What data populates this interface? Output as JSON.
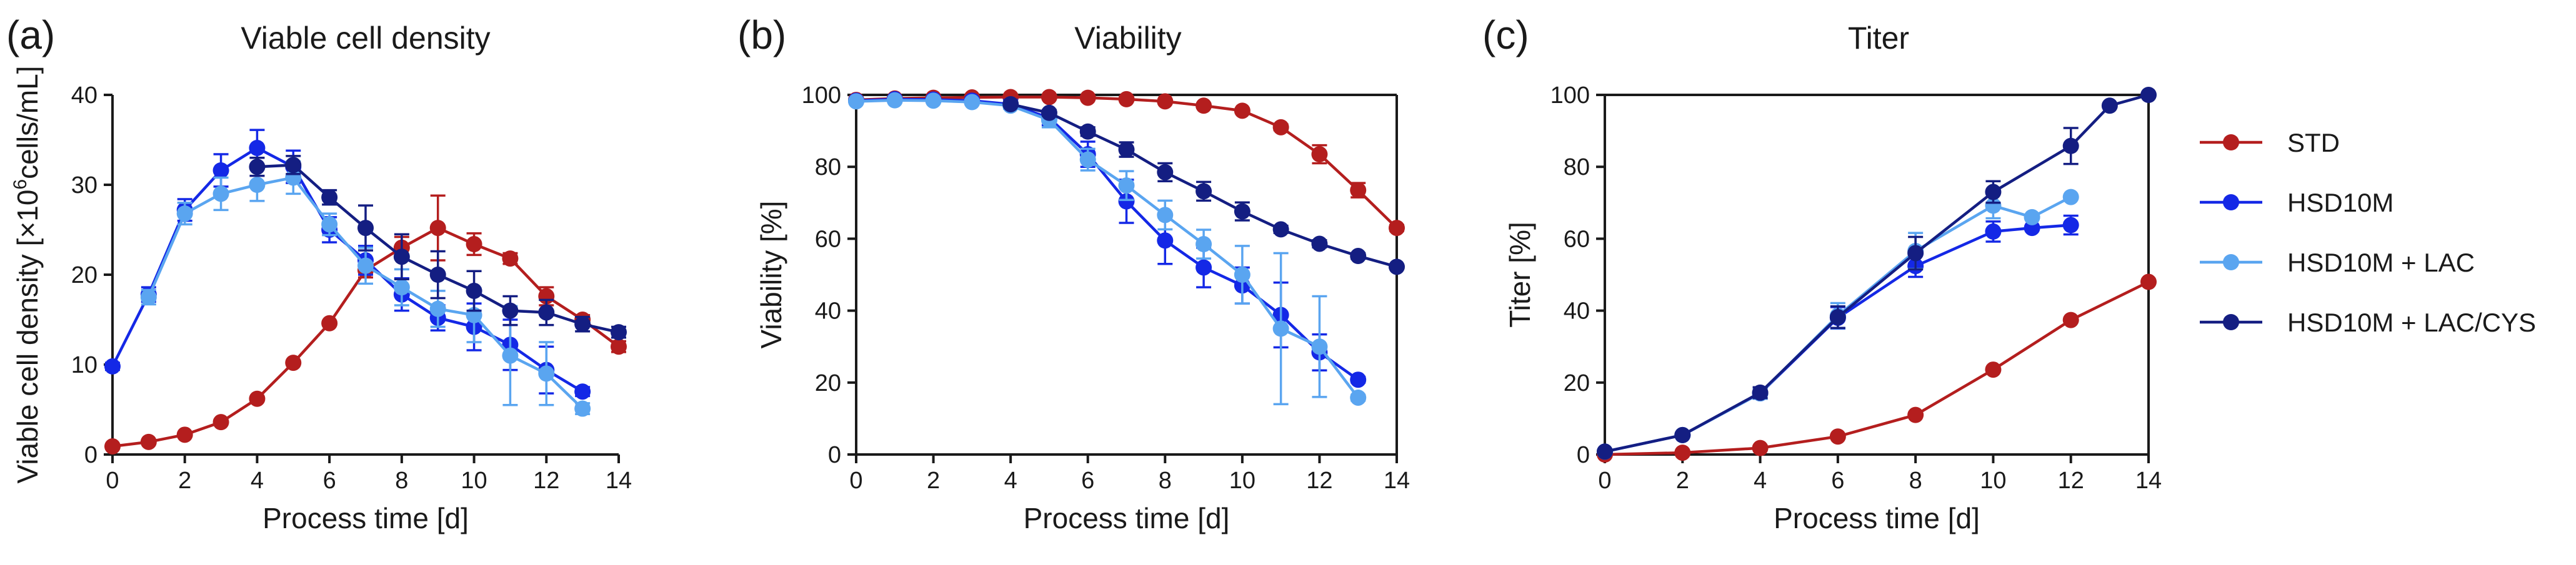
{
  "figure": {
    "legend": {
      "series": [
        {
          "name": "STD",
          "color": "#B41E1E"
        },
        {
          "name": "HSD10M",
          "color": "#1428E6"
        },
        {
          "name": "HSD10M + LAC",
          "color": "#5AA5F0"
        },
        {
          "name": "HSD10M + LAC/CYS",
          "color": "#141E82"
        }
      ]
    }
  },
  "chart_data": [
    {
      "type": "line",
      "panel": "(a)",
      "title": "Viable cell density",
      "xlabel": "Process time [d]",
      "ylabel": "Viable cell density [×10⁶cells/mL]",
      "ylabel_parts": [
        "Viable cell density [×10",
        "6",
        "cells/mL]"
      ],
      "xlim": [
        0,
        14
      ],
      "ylim": [
        0,
        40
      ],
      "xticks": [
        0,
        2,
        4,
        6,
        8,
        10,
        12,
        14
      ],
      "yticks": [
        0,
        10,
        20,
        30,
        40
      ],
      "box": false,
      "series": [
        {
          "name": "STD",
          "x": [
            0,
            1,
            2,
            3,
            4,
            5,
            6,
            7,
            8,
            9,
            10,
            11,
            12,
            13,
            14
          ],
          "y": [
            0.9,
            1.4,
            2.2,
            3.6,
            6.2,
            10.2,
            14.6,
            20.5,
            23.0,
            25.2,
            23.4,
            21.8,
            17.6,
            15.0,
            12.0
          ],
          "err": [
            0,
            0,
            0,
            0,
            0,
            0,
            0,
            0.8,
            1.2,
            3.6,
            1.2,
            0.6,
            1.0,
            0.5,
            0.6
          ]
        },
        {
          "name": "HSD10M",
          "x": [
            0,
            1,
            2,
            3,
            4,
            5,
            6,
            7,
            8,
            9,
            10,
            11,
            12,
            13
          ],
          "y": [
            9.8,
            17.8,
            27.2,
            31.6,
            34.1,
            32.0,
            25.0,
            21.6,
            17.8,
            15.2,
            14.2,
            12.2,
            9.4,
            7.0
          ],
          "err": [
            0.4,
            0.8,
            1.2,
            1.8,
            2.0,
            1.8,
            1.4,
            1.6,
            1.8,
            1.4,
            2.6,
            2.8,
            2.6,
            0.5
          ]
        },
        {
          "name": "HSD10M + LAC",
          "x": [
            1,
            2,
            3,
            4,
            5,
            6,
            7,
            8,
            9,
            10,
            11,
            12,
            13
          ],
          "y": [
            17.5,
            26.8,
            29.0,
            30.0,
            30.8,
            25.6,
            21.0,
            18.6,
            16.2,
            15.5,
            11.0,
            9.0,
            5.1
          ],
          "err": [
            0.8,
            1.2,
            1.8,
            1.8,
            1.8,
            1.2,
            2.0,
            2.0,
            2.0,
            3.0,
            5.5,
            3.5,
            0.6
          ]
        },
        {
          "name": "HSD10M + LAC/CYS",
          "x": [
            4,
            5,
            6,
            7,
            8,
            9,
            10,
            11,
            12,
            13,
            14
          ],
          "y": [
            32.0,
            32.2,
            28.6,
            25.2,
            22.0,
            20.0,
            18.2,
            16.0,
            15.8,
            14.5,
            13.6
          ],
          "err": [
            1.0,
            1.0,
            0.8,
            2.5,
            2.5,
            2.6,
            2.2,
            1.6,
            1.4,
            0.8,
            0.6
          ]
        }
      ]
    },
    {
      "type": "line",
      "panel": "(b)",
      "title": "Viability",
      "xlabel": "Process time [d]",
      "ylabel": "Viability [%]",
      "xlim": [
        0,
        14
      ],
      "ylim": [
        0,
        100
      ],
      "xticks": [
        0,
        2,
        4,
        6,
        8,
        10,
        12,
        14
      ],
      "yticks": [
        0,
        20,
        40,
        60,
        80,
        100
      ],
      "box": true,
      "series": [
        {
          "name": "STD",
          "x": [
            0,
            1,
            2,
            3,
            4,
            5,
            6,
            7,
            8,
            9,
            10,
            11,
            12,
            13,
            14
          ],
          "y": [
            98.6,
            99.0,
            99.2,
            99.3,
            99.4,
            99.4,
            99.2,
            98.8,
            98.2,
            97.0,
            95.6,
            91.0,
            83.5,
            73.5,
            63.0
          ],
          "err": [
            0,
            0,
            0,
            0,
            0,
            0,
            0,
            0,
            0,
            0,
            0.6,
            0.8,
            2.5,
            2.0,
            0.8
          ]
        },
        {
          "name": "HSD10M",
          "x": [
            0,
            1,
            2,
            3,
            4,
            5,
            6,
            7,
            8,
            9,
            10,
            11,
            12,
            13
          ],
          "y": [
            98.4,
            98.8,
            98.7,
            98.4,
            97.4,
            93.6,
            83.5,
            70.4,
            59.5,
            52.0,
            47.0,
            38.8,
            28.4,
            20.8
          ],
          "err": [
            0.5,
            0.4,
            0.4,
            0.6,
            1.2,
            2.0,
            3.5,
            6.0,
            6.5,
            5.5,
            5.0,
            9.0,
            5.0,
            0.8
          ]
        },
        {
          "name": "HSD10M + LAC",
          "x": [
            0,
            1,
            2,
            3,
            4,
            5,
            6,
            7,
            8,
            9,
            10,
            11,
            12,
            13
          ],
          "y": [
            98.2,
            98.5,
            98.4,
            98.0,
            97.0,
            93.0,
            82.0,
            74.8,
            66.6,
            58.5,
            50.0,
            35.0,
            30.0,
            15.8
          ],
          "err": [
            0.5,
            0.5,
            0.5,
            0.5,
            0.8,
            2.0,
            3.0,
            4.0,
            4.0,
            4.0,
            8.0,
            21.0,
            14.0,
            0.8
          ]
        },
        {
          "name": "HSD10M + LAC/CYS",
          "x": [
            4,
            5,
            6,
            7,
            8,
            9,
            10,
            11,
            12,
            13,
            14
          ],
          "y": [
            97.4,
            95.0,
            89.8,
            84.8,
            78.5,
            73.2,
            67.6,
            62.6,
            58.6,
            55.2,
            52.2
          ],
          "err": [
            0.5,
            0.8,
            1.2,
            2.0,
            2.5,
            2.6,
            2.5,
            1.0,
            1.0,
            0.8,
            0.5
          ]
        }
      ]
    },
    {
      "type": "line",
      "panel": "(c)",
      "title": "Titer",
      "xlabel": "Process time [d]",
      "ylabel": "Titer [%]",
      "xlim": [
        0,
        14
      ],
      "ylim": [
        0,
        100
      ],
      "xticks": [
        0,
        2,
        4,
        6,
        8,
        10,
        12,
        14
      ],
      "yticks": [
        0,
        20,
        40,
        60,
        80,
        100
      ],
      "box": true,
      "series": [
        {
          "name": "STD",
          "x": [
            0,
            2,
            4,
            6,
            8,
            10,
            12,
            14
          ],
          "y": [
            0,
            0.5,
            1.8,
            5.0,
            11.0,
            23.6,
            37.4,
            48.0
          ],
          "err": [
            0,
            0,
            0,
            0,
            0,
            0,
            0,
            0
          ]
        },
        {
          "name": "HSD10M",
          "x": [
            0,
            2,
            4,
            6,
            8,
            10,
            11,
            12
          ],
          "y": [
            0.8,
            5.4,
            17.0,
            38.0,
            52.4,
            62.0,
            63.0,
            63.8
          ],
          "err": [
            0,
            0.5,
            1.5,
            3.0,
            3.0,
            2.8,
            0,
            2.6
          ]
        },
        {
          "name": "HSD10M + LAC",
          "x": [
            0,
            2,
            4,
            6,
            8,
            10,
            11,
            12
          ],
          "y": [
            0.8,
            5.4,
            17.0,
            38.6,
            56.6,
            69.2,
            66.0,
            71.6
          ],
          "err": [
            0,
            0.5,
            1.5,
            3.5,
            5.0,
            3.5,
            0,
            0.5
          ]
        },
        {
          "name": "HSD10M + LAC/CYS",
          "x": [
            0,
            2,
            4,
            6,
            8,
            10,
            12,
            13,
            14
          ],
          "y": [
            0.8,
            5.4,
            17.2,
            38.2,
            56.0,
            73.0,
            85.8,
            97.0,
            100.0
          ],
          "err": [
            0,
            0.5,
            1.5,
            3.0,
            4.5,
            3.0,
            5.0,
            0,
            0
          ]
        }
      ]
    }
  ]
}
